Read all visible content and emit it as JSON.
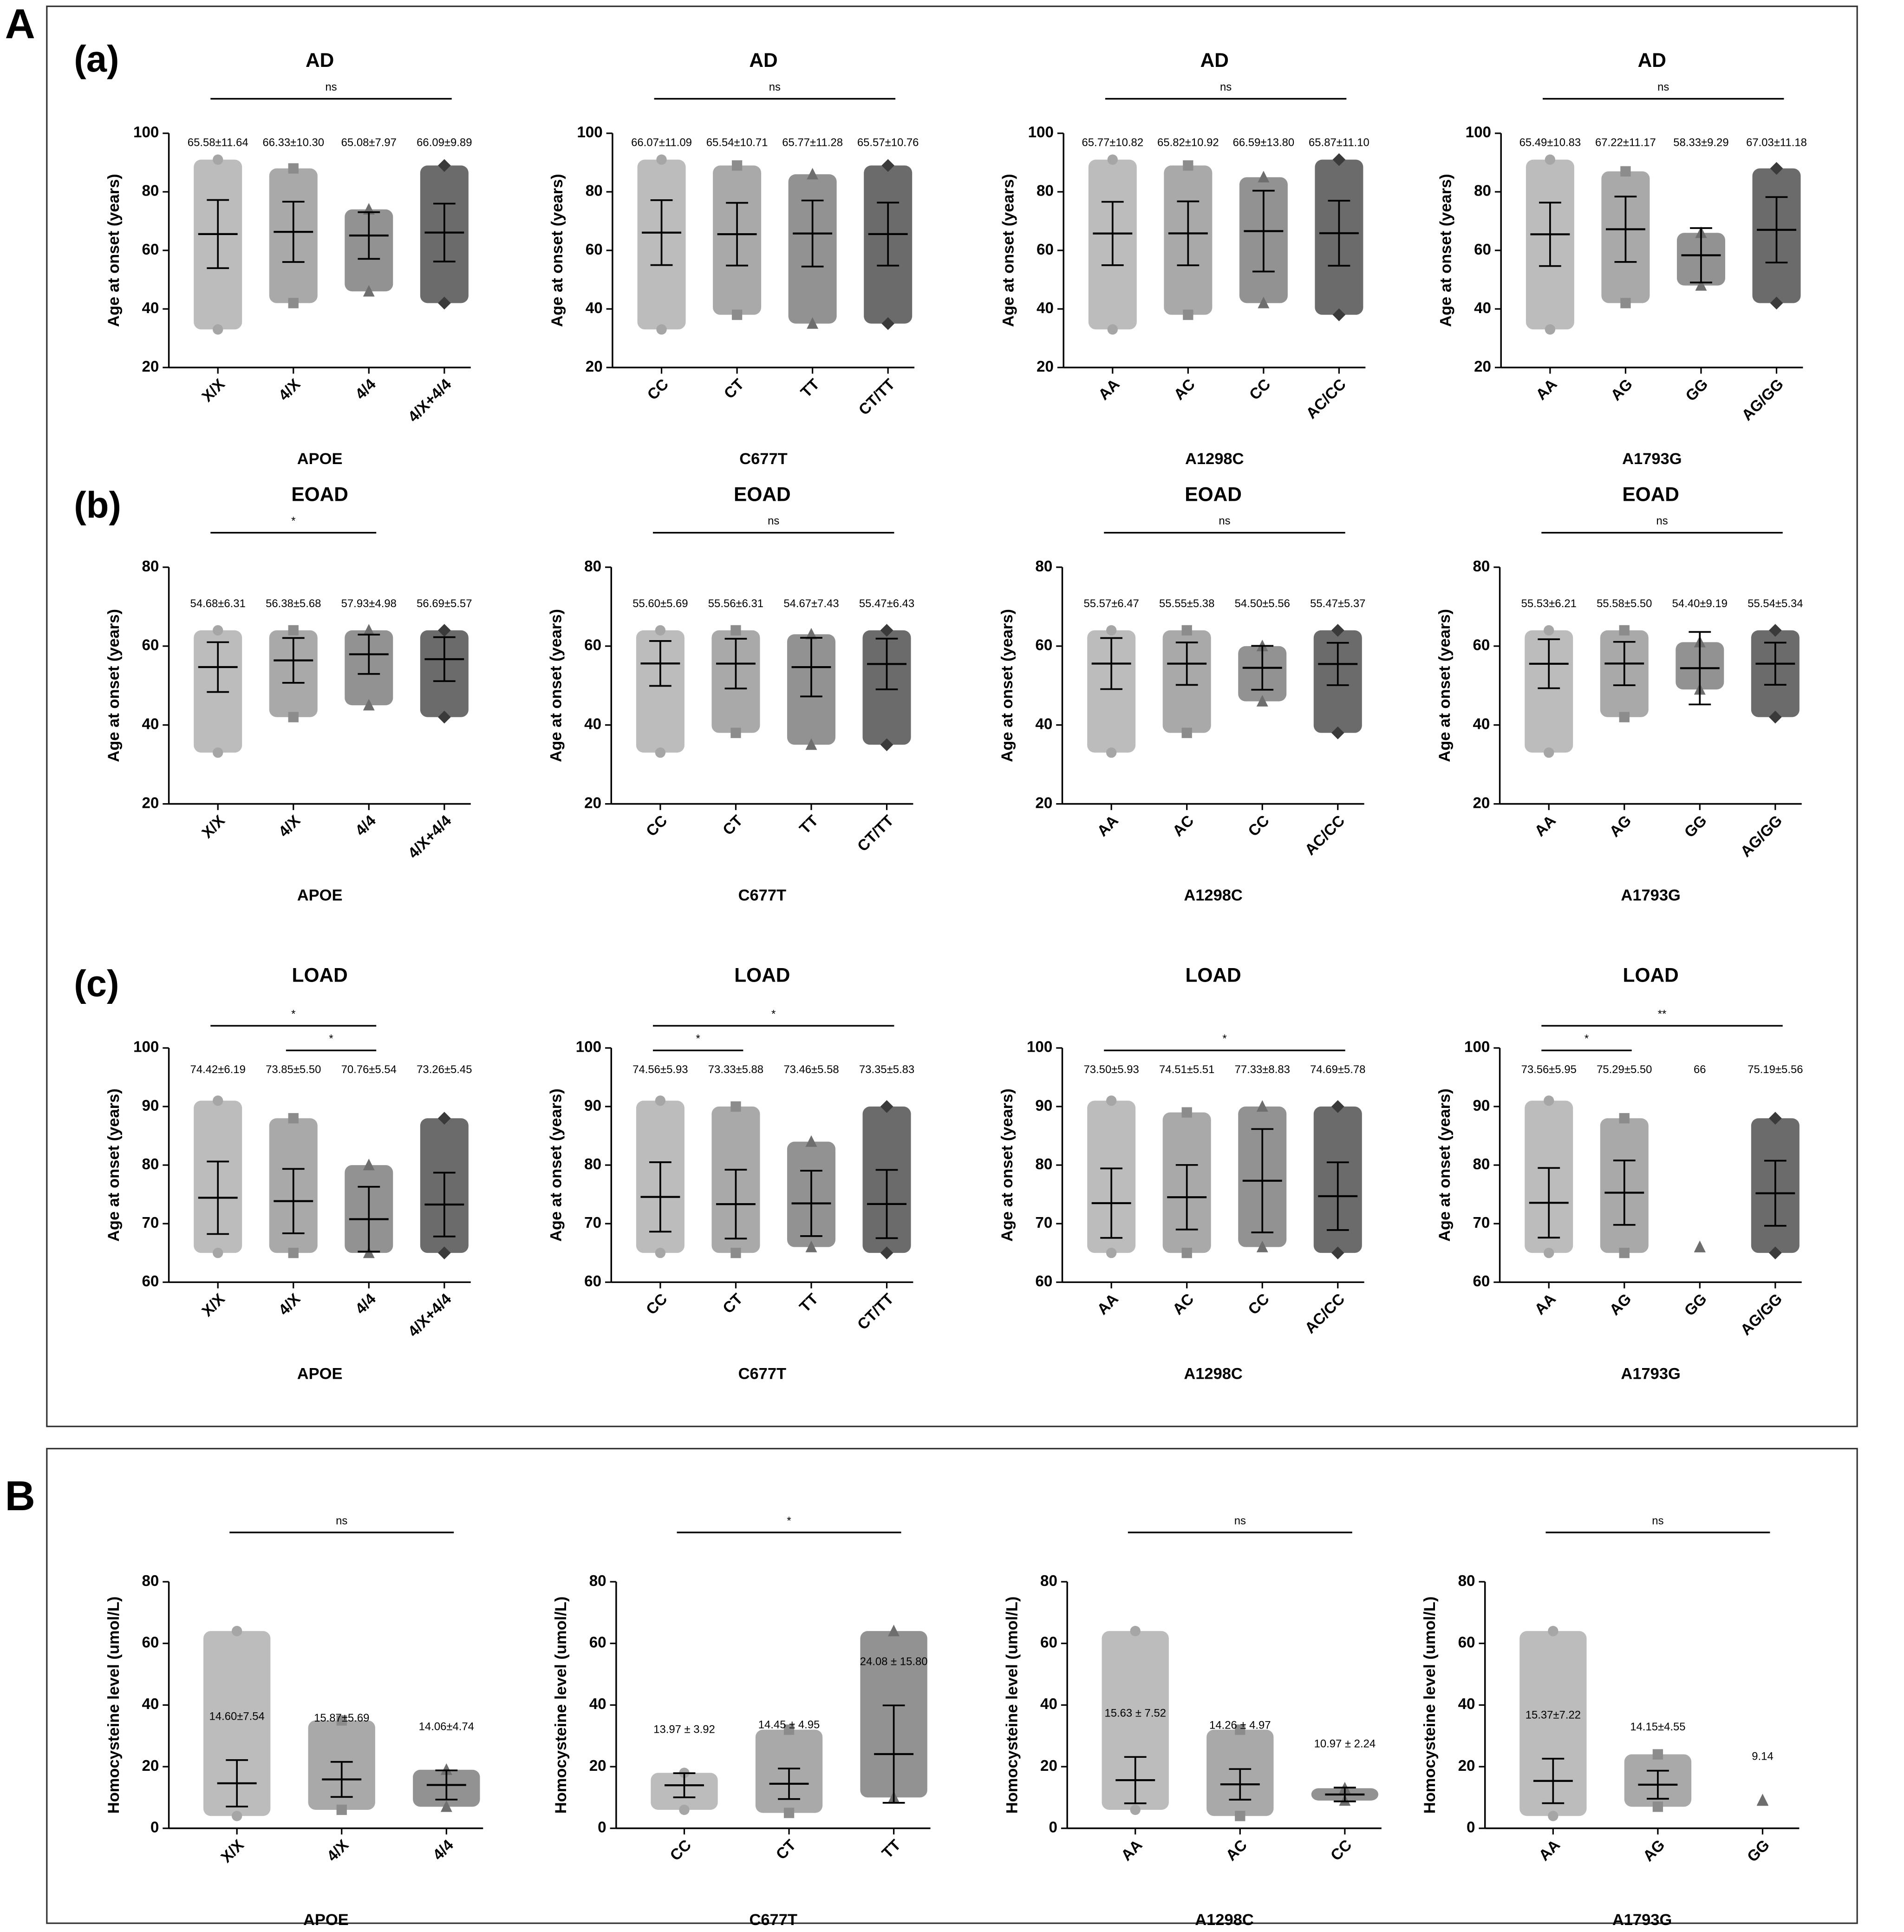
{
  "figure_labels": [
    "A",
    "B",
    "(a)",
    "(b)",
    "(c)"
  ],
  "chart_data": [
    {
      "type": "scatter",
      "title": "AD",
      "xlabel": "APOE",
      "ylabel": "Age at onset (years)",
      "categories": [
        "X/X",
        "4/X",
        "4/4",
        "4/X+4/4"
      ],
      "values": [
        65.58,
        66.33,
        65.08,
        66.09
      ],
      "errors": [
        11.64,
        10.3,
        7.97,
        9.89
      ],
      "value_labels": [
        "65.58±11.64",
        "66.33±10.30",
        "65.08±7.97",
        "66.09±9.89"
      ],
      "min": [
        33,
        42,
        46,
        42
      ],
      "max": [
        91,
        88,
        74,
        89
      ],
      "ylim": [
        20,
        100
      ],
      "yticks": [
        20,
        40,
        60,
        80,
        100
      ],
      "comparisons": [
        {
          "from": "X/X",
          "to": "4/X+4/4",
          "label": "ns"
        }
      ],
      "colors": [
        "#a6a6a6",
        "#8c8c8c",
        "#6e6e6e",
        "#3a3a3a"
      ],
      "markers": [
        "circle",
        "square",
        "triangle",
        "diamond"
      ]
    },
    {
      "type": "scatter",
      "title": "AD",
      "xlabel": "C677T",
      "ylabel": "Age at onset (years)",
      "categories": [
        "CC",
        "CT",
        "TT",
        "CT/TT"
      ],
      "values": [
        66.07,
        65.54,
        65.77,
        65.57
      ],
      "errors": [
        11.09,
        10.71,
        11.28,
        10.76
      ],
      "value_labels": [
        "66.07±11.09",
        "65.54±10.71",
        "65.77±11.28",
        "65.57±10.76"
      ],
      "min": [
        33,
        38,
        35,
        35
      ],
      "max": [
        91,
        89,
        86,
        89
      ],
      "ylim": [
        20,
        100
      ],
      "yticks": [
        20,
        40,
        60,
        80,
        100
      ],
      "comparisons": [
        {
          "from": "CC",
          "to": "CT/TT",
          "label": "ns"
        }
      ],
      "colors": [
        "#a6a6a6",
        "#8c8c8c",
        "#6e6e6e",
        "#3a3a3a"
      ],
      "markers": [
        "circle",
        "square",
        "triangle",
        "diamond"
      ]
    },
    {
      "type": "scatter",
      "title": "AD",
      "xlabel": "A1298C",
      "ylabel": "Age at onset (years)",
      "categories": [
        "AA",
        "AC",
        "CC",
        "AC/CC"
      ],
      "values": [
        65.77,
        65.82,
        66.59,
        65.87
      ],
      "errors": [
        10.82,
        10.92,
        13.8,
        11.1
      ],
      "value_labels": [
        "65.77±10.82",
        "65.82±10.92",
        "66.59±13.80",
        "65.87±11.10"
      ],
      "min": [
        33,
        38,
        42,
        38
      ],
      "max": [
        91,
        89,
        85,
        91
      ],
      "ylim": [
        20,
        100
      ],
      "yticks": [
        20,
        40,
        60,
        80,
        100
      ],
      "comparisons": [
        {
          "from": "AA",
          "to": "AC/CC",
          "label": "ns"
        }
      ],
      "colors": [
        "#a6a6a6",
        "#8c8c8c",
        "#6e6e6e",
        "#3a3a3a"
      ],
      "markers": [
        "circle",
        "square",
        "triangle",
        "diamond"
      ]
    },
    {
      "type": "scatter",
      "title": "AD",
      "xlabel": "A1793G",
      "ylabel": "Age at onset (years)",
      "categories": [
        "AA",
        "AG",
        "GG",
        "AG/GG"
      ],
      "values": [
        65.49,
        67.22,
        58.33,
        67.03
      ],
      "errors": [
        10.83,
        11.17,
        9.29,
        11.18
      ],
      "value_labels": [
        "65.49±10.83",
        "67.22±11.17",
        "58.33±9.29",
        "67.03±11.18"
      ],
      "min": [
        33,
        42,
        48,
        42
      ],
      "max": [
        91,
        87,
        66,
        88
      ],
      "ylim": [
        20,
        100
      ],
      "yticks": [
        20,
        40,
        60,
        80,
        100
      ],
      "comparisons": [
        {
          "from": "AA",
          "to": "AG/GG",
          "label": "ns"
        }
      ],
      "colors": [
        "#a6a6a6",
        "#8c8c8c",
        "#6e6e6e",
        "#3a3a3a"
      ],
      "markers": [
        "circle",
        "square",
        "triangle",
        "diamond"
      ]
    },
    {
      "type": "scatter",
      "title": "EOAD",
      "xlabel": "APOE",
      "ylabel": "Age at onset (years)",
      "categories": [
        "X/X",
        "4/X",
        "4/4",
        "4/X+4/4"
      ],
      "values": [
        54.68,
        56.38,
        57.93,
        56.69
      ],
      "errors": [
        6.31,
        5.68,
        4.98,
        5.57
      ],
      "value_labels": [
        "54.68±6.31",
        "56.38±5.68",
        "57.93±4.98",
        "56.69±5.57"
      ],
      "min": [
        33,
        42,
        45,
        42
      ],
      "max": [
        64,
        64,
        64,
        64
      ],
      "ylim": [
        20,
        80
      ],
      "yticks": [
        20,
        40,
        60,
        80
      ],
      "comparisons": [
        {
          "from": "X/X",
          "to": "4/4",
          "label": "*"
        }
      ],
      "colors": [
        "#a6a6a6",
        "#8c8c8c",
        "#6e6e6e",
        "#3a3a3a"
      ],
      "markers": [
        "circle",
        "square",
        "triangle",
        "diamond"
      ]
    },
    {
      "type": "scatter",
      "title": "EOAD",
      "xlabel": "C677T",
      "ylabel": "Age at onset (years)",
      "categories": [
        "CC",
        "CT",
        "TT",
        "CT/TT"
      ],
      "values": [
        55.6,
        55.56,
        54.67,
        55.47
      ],
      "errors": [
        5.69,
        6.31,
        7.43,
        6.43
      ],
      "value_labels": [
        "55.60±5.69",
        "55.56±6.31",
        "54.67±7.43",
        "55.47±6.43"
      ],
      "min": [
        33,
        38,
        35,
        35
      ],
      "max": [
        64,
        64,
        63,
        64
      ],
      "ylim": [
        20,
        80
      ],
      "yticks": [
        20,
        40,
        60,
        80
      ],
      "comparisons": [
        {
          "from": "CC",
          "to": "CT/TT",
          "label": "ns"
        }
      ],
      "colors": [
        "#a6a6a6",
        "#8c8c8c",
        "#6e6e6e",
        "#3a3a3a"
      ],
      "markers": [
        "circle",
        "square",
        "triangle",
        "diamond"
      ]
    },
    {
      "type": "scatter",
      "title": "EOAD",
      "xlabel": "A1298C",
      "ylabel": "Age at onset (years)",
      "categories": [
        "AA",
        "AC",
        "CC",
        "AC/CC"
      ],
      "values": [
        55.57,
        55.55,
        54.5,
        55.47
      ],
      "errors": [
        6.47,
        5.38,
        5.56,
        5.37
      ],
      "value_labels": [
        "55.57±6.47",
        "55.55±5.38",
        "54.50±5.56",
        "55.47±5.37"
      ],
      "min": [
        33,
        38,
        46,
        38
      ],
      "max": [
        64,
        64,
        60,
        64
      ],
      "ylim": [
        20,
        80
      ],
      "yticks": [
        20,
        40,
        60,
        80
      ],
      "comparisons": [
        {
          "from": "AA",
          "to": "AC/CC",
          "label": "ns"
        }
      ],
      "colors": [
        "#a6a6a6",
        "#8c8c8c",
        "#6e6e6e",
        "#3a3a3a"
      ],
      "markers": [
        "circle",
        "square",
        "triangle",
        "diamond"
      ]
    },
    {
      "type": "scatter",
      "title": "EOAD",
      "xlabel": "A1793G",
      "ylabel": "Age at onset (years)",
      "categories": [
        "AA",
        "AG",
        "GG",
        "AG/GG"
      ],
      "values": [
        55.53,
        55.58,
        54.4,
        55.54
      ],
      "errors": [
        6.21,
        5.5,
        9.19,
        5.34
      ],
      "value_labels": [
        "55.53±6.21",
        "55.58±5.50",
        "54.40±9.19",
        "55.54±5.34"
      ],
      "min": [
        33,
        42,
        49,
        42
      ],
      "max": [
        64,
        64,
        61,
        64
      ],
      "ylim": [
        20,
        80
      ],
      "yticks": [
        20,
        40,
        60,
        80
      ],
      "comparisons": [
        {
          "from": "AA",
          "to": "AG/GG",
          "label": "ns"
        }
      ],
      "colors": [
        "#a6a6a6",
        "#8c8c8c",
        "#6e6e6e",
        "#3a3a3a"
      ],
      "markers": [
        "circle",
        "square",
        "triangle",
        "diamond"
      ]
    },
    {
      "type": "scatter",
      "title": "LOAD",
      "xlabel": "APOE",
      "ylabel": "Age at onset (years)",
      "categories": [
        "X/X",
        "4/X",
        "4/4",
        "4/X+4/4"
      ],
      "values": [
        74.42,
        73.85,
        70.76,
        73.26
      ],
      "errors": [
        6.19,
        5.5,
        5.54,
        5.45
      ],
      "value_labels": [
        "74.42±6.19",
        "73.85±5.50",
        "70.76±5.54",
        "73.26±5.45"
      ],
      "min": [
        65,
        65,
        65,
        65
      ],
      "max": [
        91,
        88,
        80,
        88
      ],
      "ylim": [
        60,
        100
      ],
      "yticks": [
        60,
        70,
        80,
        90,
        100
      ],
      "comparisons": [
        {
          "from": "X/X",
          "to": "4/4",
          "label": "*"
        },
        {
          "from": "4/X",
          "to": "4/4",
          "label": "*"
        }
      ],
      "colors": [
        "#a6a6a6",
        "#8c8c8c",
        "#6e6e6e",
        "#3a3a3a"
      ],
      "markers": [
        "circle",
        "square",
        "triangle",
        "diamond"
      ]
    },
    {
      "type": "scatter",
      "title": "LOAD",
      "xlabel": "C677T",
      "ylabel": "Age at onset (years)",
      "categories": [
        "CC",
        "CT",
        "TT",
        "CT/TT"
      ],
      "values": [
        74.56,
        73.33,
        73.46,
        73.35
      ],
      "errors": [
        5.93,
        5.88,
        5.58,
        5.83
      ],
      "value_labels": [
        "74.56±5.93",
        "73.33±5.88",
        "73.46±5.58",
        "73.35±5.83"
      ],
      "min": [
        65,
        65,
        66,
        65
      ],
      "max": [
        91,
        90,
        84,
        90
      ],
      "ylim": [
        60,
        100
      ],
      "yticks": [
        60,
        70,
        80,
        90,
        100
      ],
      "comparisons": [
        {
          "from": "CC",
          "to": "CT",
          "label": "*"
        },
        {
          "from": "CC",
          "to": "CT/TT",
          "label": "*"
        }
      ],
      "colors": [
        "#a6a6a6",
        "#8c8c8c",
        "#6e6e6e",
        "#3a3a3a"
      ],
      "markers": [
        "circle",
        "square",
        "triangle",
        "diamond"
      ]
    },
    {
      "type": "scatter",
      "title": "LOAD",
      "xlabel": "A1298C",
      "ylabel": "Age at onset (years)",
      "categories": [
        "AA",
        "AC",
        "CC",
        "AC/CC"
      ],
      "values": [
        73.5,
        74.51,
        77.33,
        74.69
      ],
      "errors": [
        5.93,
        5.51,
        8.83,
        5.78
      ],
      "value_labels": [
        "73.50±5.93",
        "74.51±5.51",
        "77.33±8.83",
        "74.69±5.78"
      ],
      "min": [
        65,
        65,
        66,
        65
      ],
      "max": [
        91,
        89,
        90,
        90
      ],
      "ylim": [
        60,
        100
      ],
      "yticks": [
        60,
        70,
        80,
        90,
        100
      ],
      "comparisons": [
        {
          "from": "AA",
          "to": "AC/CC",
          "label": "*"
        }
      ],
      "colors": [
        "#a6a6a6",
        "#8c8c8c",
        "#6e6e6e",
        "#3a3a3a"
      ],
      "markers": [
        "circle",
        "square",
        "triangle",
        "diamond"
      ]
    },
    {
      "type": "scatter",
      "title": "LOAD",
      "xlabel": "A1793G",
      "ylabel": "Age at onset (years)",
      "categories": [
        "AA",
        "AG",
        "GG",
        "AG/GG"
      ],
      "values": [
        73.56,
        75.29,
        66,
        75.19
      ],
      "errors": [
        5.95,
        5.5,
        null,
        5.56
      ],
      "value_labels": [
        "73.56±5.95",
        "75.29±5.50",
        "66",
        "75.19±5.56"
      ],
      "min": [
        65,
        65,
        66,
        65
      ],
      "max": [
        91,
        88,
        66,
        88
      ],
      "ylim": [
        60,
        100
      ],
      "yticks": [
        60,
        70,
        80,
        90,
        100
      ],
      "comparisons": [
        {
          "from": "AA",
          "to": "AG",
          "label": "*"
        },
        {
          "from": "AA",
          "to": "AG/GG",
          "label": "**"
        }
      ],
      "colors": [
        "#a6a6a6",
        "#8c8c8c",
        "#6e6e6e",
        "#3a3a3a"
      ],
      "markers": [
        "circle",
        "square",
        "triangle",
        "diamond"
      ]
    },
    {
      "type": "scatter",
      "xlabel": "APOE",
      "ylabel": "Homocysteine level (umol/L)",
      "categories": [
        "X/X",
        "4/X",
        "4/4"
      ],
      "values": [
        14.6,
        15.87,
        14.06
      ],
      "errors": [
        7.54,
        5.69,
        4.74
      ],
      "value_labels": [
        "14.60±7.54",
        "15.87±5.69",
        "14.06±4.74"
      ],
      "min": [
        4,
        6,
        7
      ],
      "max": [
        64,
        35,
        19
      ],
      "ylim": [
        0,
        80
      ],
      "yticks": [
        0,
        20,
        40,
        60,
        80
      ],
      "comparisons": [
        {
          "from": "X/X",
          "to": "4/4",
          "label": "ns"
        }
      ],
      "colors": [
        "#a6a6a6",
        "#8c8c8c",
        "#6e6e6e"
      ],
      "markers": [
        "circle",
        "square",
        "triangle"
      ]
    },
    {
      "type": "scatter",
      "xlabel": "C677T",
      "ylabel": "Homocysteine level (umol/L)",
      "categories": [
        "CC",
        "CT",
        "TT"
      ],
      "values": [
        13.97,
        14.45,
        24.08
      ],
      "errors": [
        3.92,
        4.95,
        15.8
      ],
      "value_labels": [
        "13.97 ± 3.92",
        "14.45 ± 4.95",
        "24.08 ± 15.80"
      ],
      "min": [
        6,
        5,
        10
      ],
      "max": [
        18,
        32,
        64
      ],
      "ylim": [
        0,
        80
      ],
      "yticks": [
        0,
        20,
        40,
        60,
        80
      ],
      "comparisons": [
        {
          "from": "CC",
          "to": "TT",
          "label": "*"
        }
      ],
      "colors": [
        "#a6a6a6",
        "#8c8c8c",
        "#6e6e6e"
      ],
      "markers": [
        "circle",
        "square",
        "triangle"
      ]
    },
    {
      "type": "scatter",
      "xlabel": "A1298C",
      "ylabel": "Homocysteine level (umol/L)",
      "categories": [
        "AA",
        "AC",
        "CC"
      ],
      "values": [
        15.63,
        14.26,
        10.97
      ],
      "errors": [
        7.52,
        4.97,
        2.24
      ],
      "value_labels": [
        "15.63 ± 7.52",
        "14.26 ± 4.97",
        "10.97 ± 2.24"
      ],
      "min": [
        6,
        4,
        9
      ],
      "max": [
        64,
        32,
        13
      ],
      "ylim": [
        0,
        80
      ],
      "yticks": [
        0,
        20,
        40,
        60,
        80
      ],
      "comparisons": [
        {
          "from": "AA",
          "to": "CC",
          "label": "ns"
        }
      ],
      "colors": [
        "#a6a6a6",
        "#8c8c8c",
        "#6e6e6e"
      ],
      "markers": [
        "circle",
        "square",
        "triangle"
      ]
    },
    {
      "type": "scatter",
      "xlabel": "A1793G",
      "ylabel": "Homocysteine level (umol/L)",
      "categories": [
        "AA",
        "AG",
        "GG"
      ],
      "values": [
        15.37,
        14.15,
        9.14
      ],
      "errors": [
        7.22,
        4.55,
        null
      ],
      "value_labels": [
        "15.37±7.22",
        "14.15±4.55",
        "9.14"
      ],
      "min": [
        4,
        7,
        9
      ],
      "max": [
        64,
        24,
        9
      ],
      "ylim": [
        0,
        80
      ],
      "yticks": [
        0,
        20,
        40,
        60,
        80
      ],
      "comparisons": [
        {
          "from": "AA",
          "to": "GG",
          "label": "ns"
        }
      ],
      "colors": [
        "#a6a6a6",
        "#8c8c8c",
        "#6e6e6e"
      ],
      "markers": [
        "circle",
        "square",
        "triangle"
      ]
    }
  ]
}
